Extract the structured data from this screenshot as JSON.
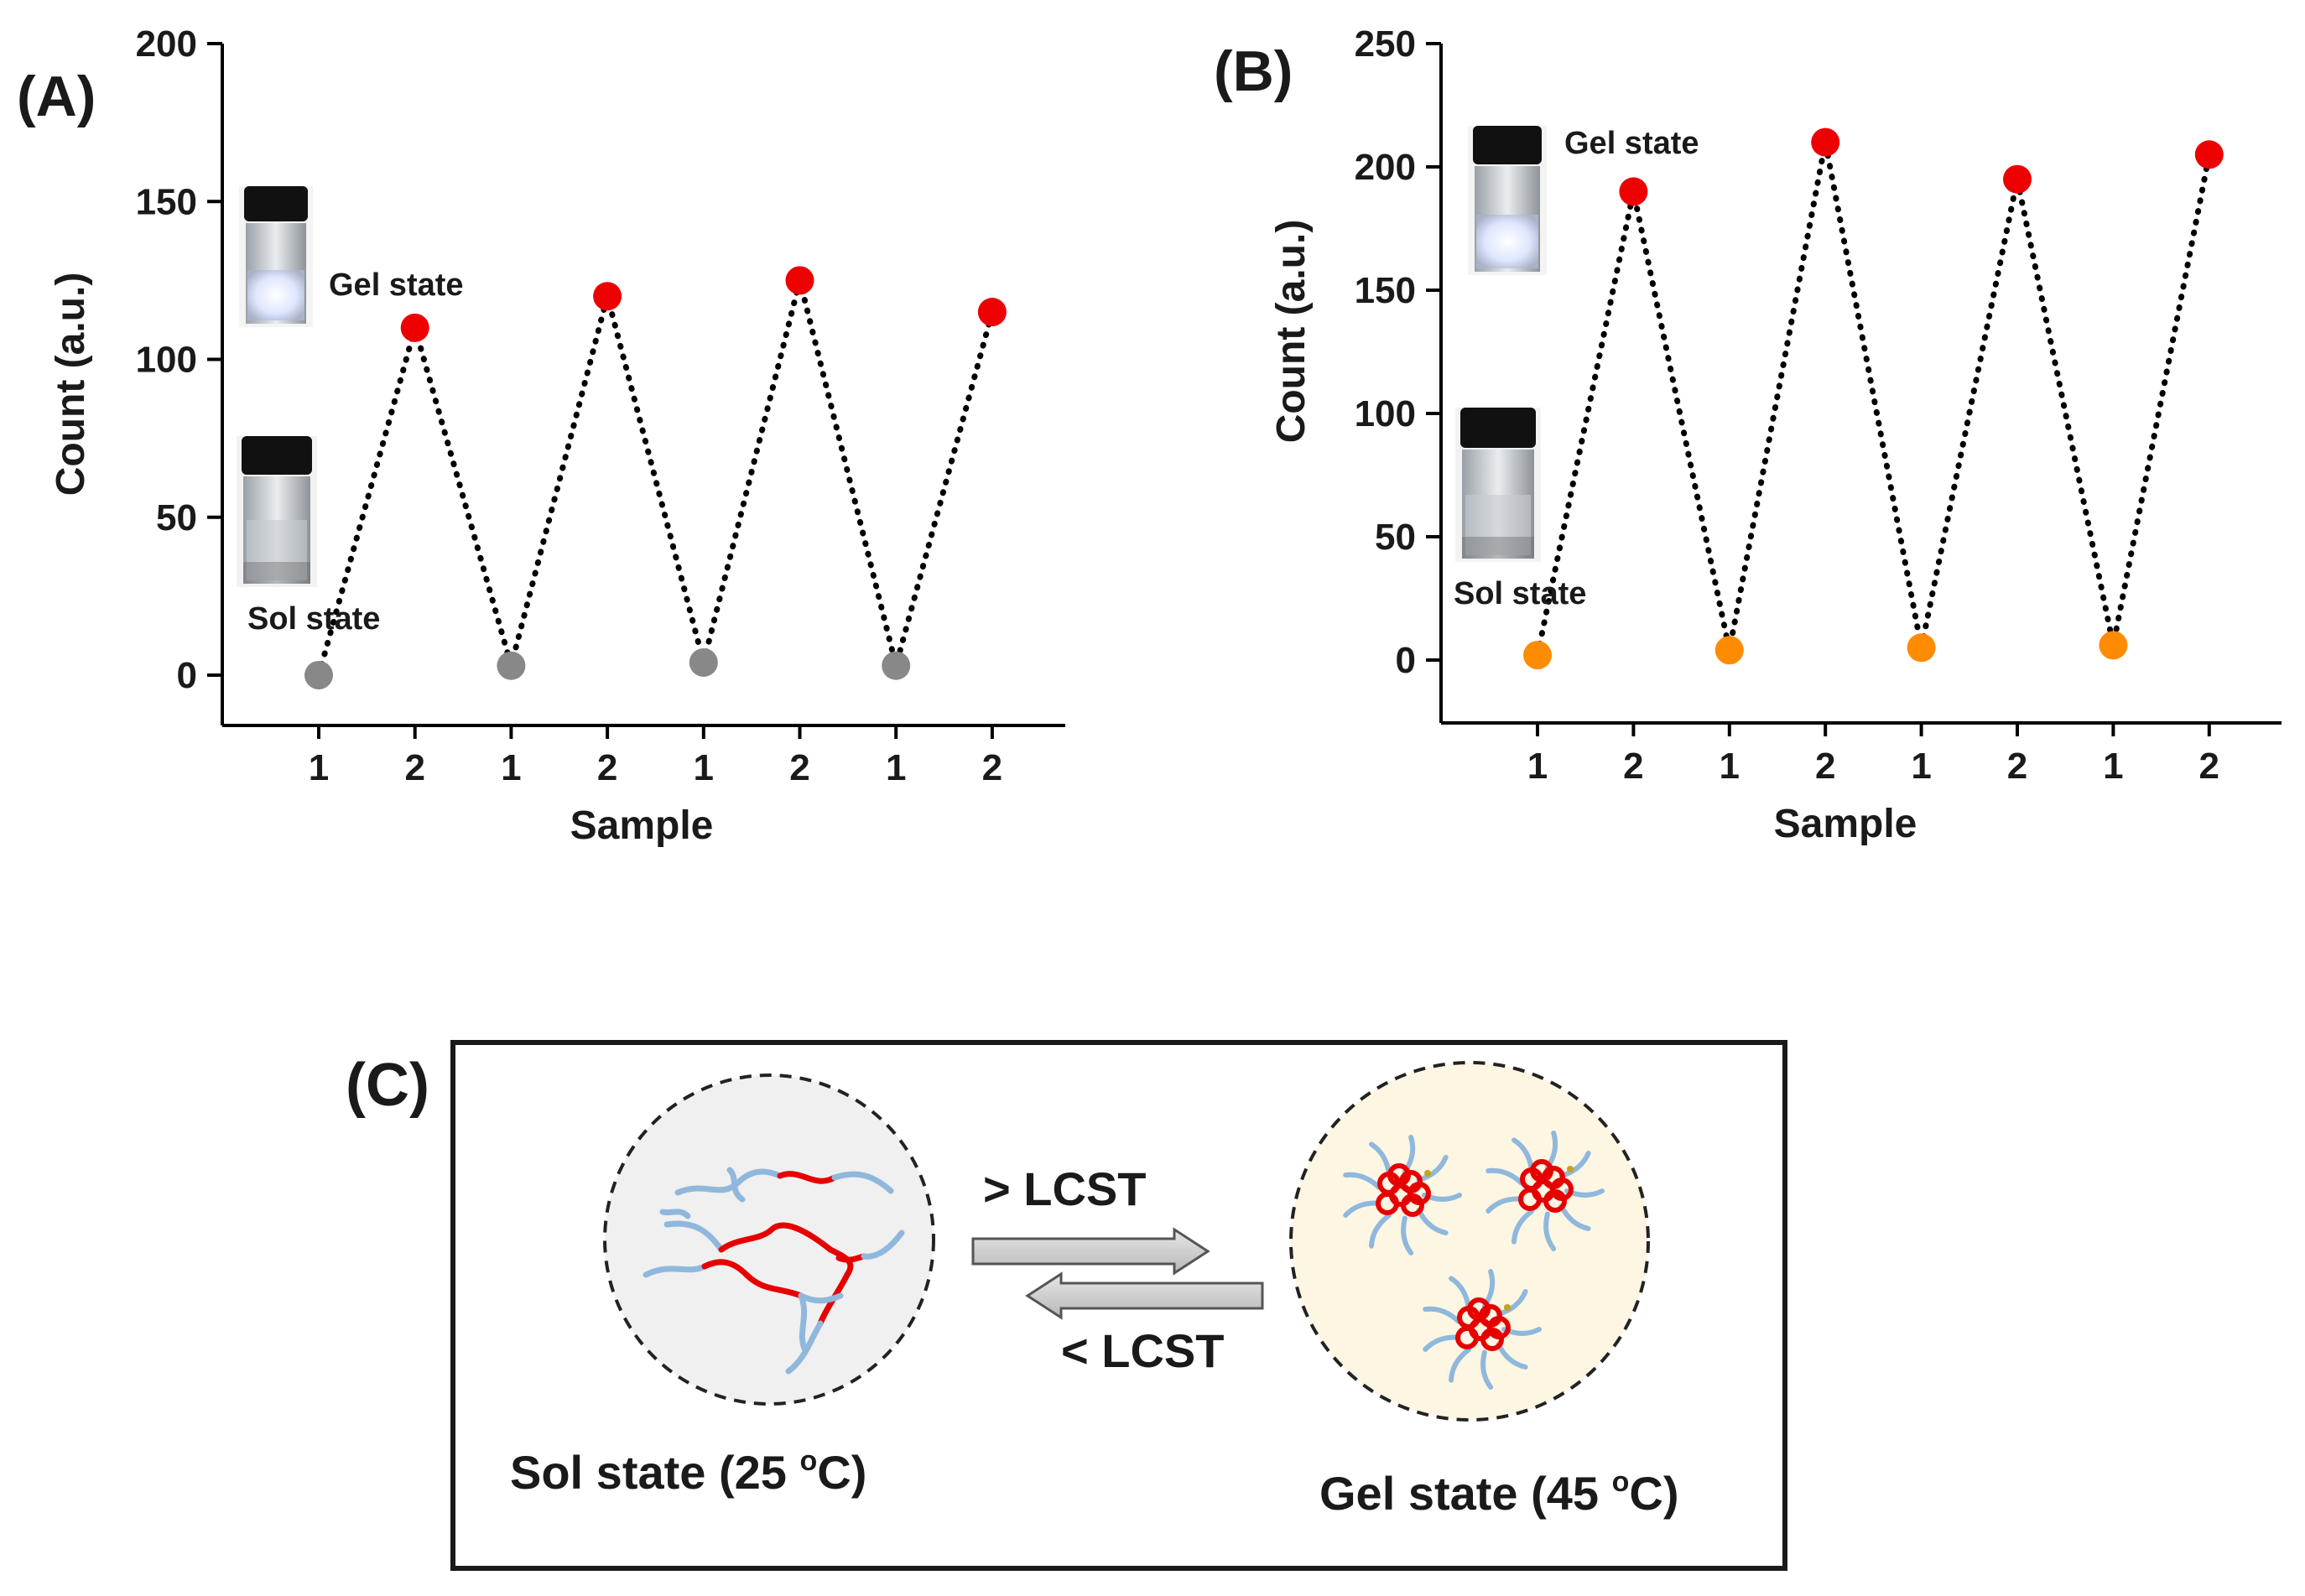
{
  "chart_data": [
    {
      "panel_label": "(A)",
      "type": "scatter",
      "categories": [
        "1",
        "2",
        "1",
        "2",
        "1",
        "2",
        "1",
        "2"
      ],
      "values": [
        0,
        110,
        3,
        120,
        4,
        125,
        3,
        115
      ],
      "point_colors": [
        "#888888",
        "#ee0000",
        "#888888",
        "#ee0000",
        "#888888",
        "#ee0000",
        "#888888",
        "#ee0000"
      ],
      "xlabel": "Sample",
      "ylabel": "Count (a.u.)",
      "ylim": [
        -15,
        200
      ],
      "yticks": [
        0,
        50,
        100,
        150,
        200
      ],
      "line_style": "dotted",
      "gel_label": "Gel state",
      "sol_label": "Sol state"
    },
    {
      "panel_label": "(B)",
      "type": "scatter",
      "categories": [
        "1",
        "2",
        "1",
        "2",
        "1",
        "2",
        "1",
        "2"
      ],
      "values": [
        2,
        190,
        4,
        210,
        5,
        195,
        6,
        205
      ],
      "point_colors": [
        "#ff8c00",
        "#ee0000",
        "#ff8c00",
        "#ee0000",
        "#ff8c00",
        "#ee0000",
        "#ff8c00",
        "#ee0000"
      ],
      "xlabel": "Sample",
      "ylabel": "Count (a.u.)",
      "ylim": [
        -25,
        250
      ],
      "yticks": [
        0,
        50,
        100,
        150,
        200,
        250
      ],
      "line_style": "dotted",
      "gel_label": "Gel state",
      "sol_label": "Sol state"
    }
  ],
  "schematic": {
    "panel_label": "(C)",
    "sol_caption": "Sol state (25 ",
    "gel_caption": "Gel state (45 ",
    "degree_sup": "o",
    "unit_suffix": "C)",
    "forward_label": "> LCST",
    "reverse_label": "< LCST",
    "colors": {
      "hydrophobic": "#e60000",
      "hydrophilic": "#8fb8dc",
      "sol_fill": "#f0f0f0",
      "gel_fill": "#fdf6e3"
    }
  }
}
